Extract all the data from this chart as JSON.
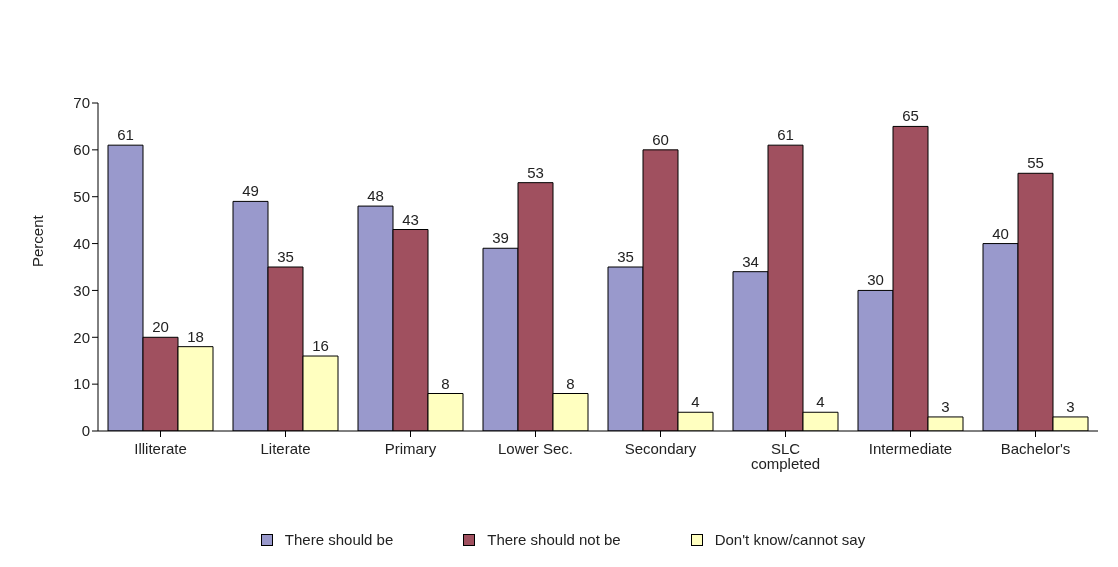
{
  "chart_data": {
    "type": "bar",
    "ylabel": "Percent",
    "categories": [
      "Illiterate",
      "Literate",
      "Primary",
      "Lower Sec.",
      "Secondary",
      "SLC completed",
      "Intermediate",
      "Bachelor's"
    ],
    "series": [
      {
        "name": "There should be",
        "color": "#9999cc",
        "values": [
          61,
          49,
          48,
          39,
          35,
          34,
          30,
          40
        ]
      },
      {
        "name": "There should not be",
        "color": "#a0505f",
        "values": [
          20,
          35,
          43,
          53,
          60,
          61,
          65,
          55
        ]
      },
      {
        "name": "Don't know/cannot say",
        "color": "#ffffc0",
        "values": [
          18,
          16,
          8,
          8,
          4,
          4,
          3,
          3
        ]
      }
    ],
    "ylim": [
      0,
      70
    ],
    "yticks": [
      0,
      10,
      20,
      30,
      40,
      50,
      60,
      70
    ],
    "data_labels": true,
    "legend": "bottom"
  }
}
